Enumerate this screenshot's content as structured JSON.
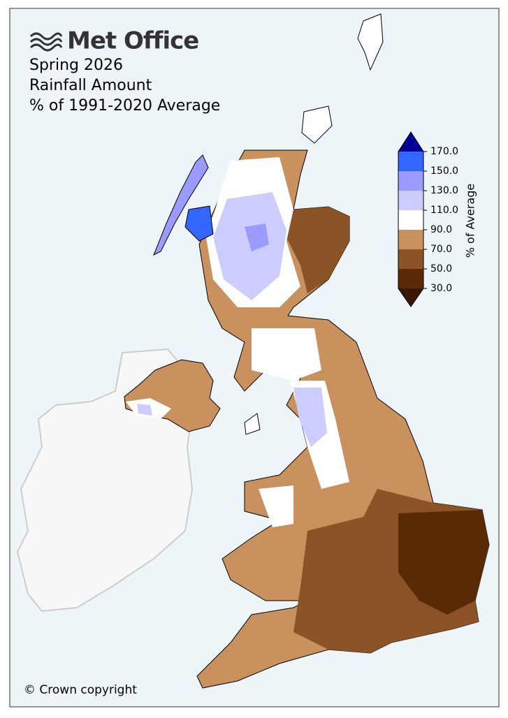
{
  "header": {
    "brand": "Met Office",
    "title_lines": [
      "Spring 2026",
      "Rainfall Amount",
      "% of 1991-2020 Average"
    ]
  },
  "colorbar": {
    "label": "% of Average",
    "ticks": [
      {
        "value": 30,
        "label": "30.0"
      },
      {
        "value": 50,
        "label": "50.0"
      },
      {
        "value": 70,
        "label": "70.0"
      },
      {
        "value": 90,
        "label": "90.0"
      },
      {
        "value": 110,
        "label": "110.0"
      },
      {
        "value": 130,
        "label": "130.0"
      },
      {
        "value": 150,
        "label": "150.0"
      },
      {
        "value": 170,
        "label": "170.0"
      }
    ],
    "colors": [
      "#5a2906",
      "#8b5326",
      "#c8915e",
      "#ffffff",
      "#ccccff",
      "#9b9bff",
      "#3366ff"
    ],
    "under_color": "#3a1404",
    "over_color": "#000099"
  },
  "footer": {
    "copyright": "© Crown copyright"
  }
}
